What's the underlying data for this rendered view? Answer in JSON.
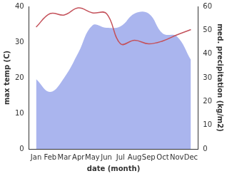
{
  "chart_data": {
    "type": "line",
    "x_label": "date (month)",
    "y_label": "max temp (C)",
    "y2_label": "med. precipitation (kg/m2)",
    "categories": [
      "Jan",
      "Feb",
      "Mar",
      "Apr",
      "May",
      "Jun",
      "Jul",
      "Aug",
      "Sep",
      "Oct",
      "Nov",
      "Dec"
    ],
    "series": [
      {
        "type": "area",
        "axis": "y2",
        "color": "#aab5ee",
        "values": [
          29.4,
          24,
          30,
          40.5,
          52,
          51,
          51.6,
          57,
          57,
          48.6,
          47.4,
          37.5
        ]
      },
      {
        "type": "line",
        "color": "#c4515a",
        "values": [
          34.2,
          38,
          37.6,
          39.6,
          38.2,
          38,
          29.5,
          30.5,
          29.5,
          30.3,
          32,
          33.5
        ]
      }
    ],
    "ylim": [
      0,
      40
    ],
    "yticks": [
      0,
      10,
      20,
      30,
      40
    ],
    "y2lim": [
      0,
      60
    ],
    "y2ticks": [
      0,
      10,
      20,
      30,
      40,
      50,
      60
    ],
    "grid": false
  }
}
